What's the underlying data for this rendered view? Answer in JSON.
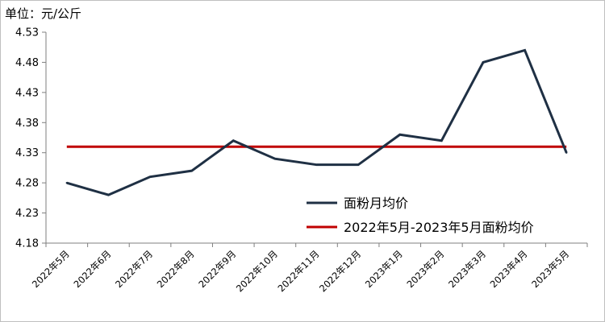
{
  "unit_label": "单位：元/公斤",
  "colors": {
    "series": "#1f3044",
    "average": "#c00000",
    "axis": "#7f7f7f"
  },
  "chart_data": {
    "type": "line",
    "categories": [
      "2022年5月",
      "2022年6月",
      "2022年7月",
      "2022年8月",
      "2022年9月",
      "2022年10月",
      "2022年11月",
      "2022年12月",
      "2023年1月",
      "2023年2月",
      "2023年3月",
      "2023年4月",
      "2023年5月"
    ],
    "series": [
      {
        "name": "面粉月均价",
        "values": [
          4.28,
          4.26,
          4.29,
          4.3,
          4.35,
          4.32,
          4.31,
          4.31,
          4.36,
          4.35,
          4.48,
          4.5,
          4.33
        ]
      },
      {
        "name": "2022年5月-2023年5月面粉均价",
        "values": [
          4.34,
          4.34,
          4.34,
          4.34,
          4.34,
          4.34,
          4.34,
          4.34,
          4.34,
          4.34,
          4.34,
          4.34,
          4.34
        ]
      }
    ],
    "yticks": [
      "4.18",
      "4.23",
      "4.28",
      "4.33",
      "4.38",
      "4.43",
      "4.48",
      "4.53"
    ],
    "ylim": [
      4.18,
      4.53
    ],
    "grid": false,
    "legend": "bottom-right"
  }
}
